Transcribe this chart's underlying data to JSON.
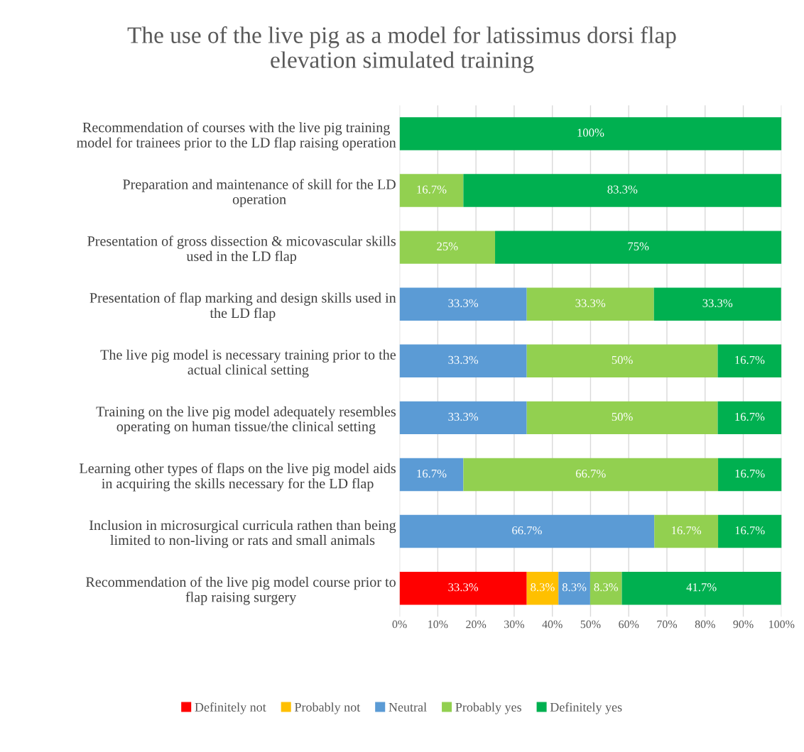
{
  "chart_data": {
    "type": "bar",
    "orientation": "horizontal",
    "stacked": true,
    "title": "The use of the live pig as a model for latissimus dorsi flap\nelevation simulated training",
    "categories": [
      "Recommendation of courses with the live pig training\nmodel for trainees prior to the LD flap raising operation",
      "Preparation and maintenance of skill for the LD\noperation",
      "Presentation of gross dissection & micovascular skills\nused in the LD flap",
      "Presentation of flap marking and design skills used in\nthe LD flap",
      "The live pig model is necessary training prior to the\nactual clinical setting",
      "Training on the live pig model adequately resembles\noperating on human tissue/the clinical setting",
      "Learning other types of flaps on the live pig model aids\nin acquiring the skills necessary for the LD flap",
      "Inclusion in microsurgical curricula rathen than being\nlimited to non-living or rats and small animals",
      "Recommendation of the live pig model course prior to\nflap raising surgery"
    ],
    "series": [
      {
        "name": "Definitely not",
        "color": "#ff0000",
        "values": [
          null,
          null,
          null,
          null,
          null,
          null,
          null,
          null,
          33.3
        ],
        "value_labels": [
          null,
          null,
          null,
          null,
          null,
          null,
          null,
          null,
          "33.3%"
        ]
      },
      {
        "name": "Probably not",
        "color": "#ffc000",
        "values": [
          null,
          null,
          null,
          null,
          null,
          null,
          null,
          null,
          8.3
        ],
        "value_labels": [
          null,
          null,
          null,
          null,
          null,
          null,
          null,
          null,
          "8.3%"
        ]
      },
      {
        "name": "Neutral",
        "color": "#5b9bd5",
        "values": [
          null,
          null,
          null,
          33.3,
          33.3,
          33.3,
          16.7,
          66.7,
          8.3
        ],
        "value_labels": [
          null,
          null,
          null,
          "33.3%",
          "33.3%",
          "33.3%",
          "16.7%",
          "66.7%",
          "8.3%"
        ]
      },
      {
        "name": "Probably yes",
        "color": "#92d050",
        "values": [
          null,
          16.7,
          25,
          33.3,
          50,
          50,
          66.7,
          16.7,
          8.3
        ],
        "value_labels": [
          null,
          "16.7%",
          "25%",
          "33.3%",
          "50%",
          "50%",
          "66.7%",
          "16.7%",
          "8.3%"
        ]
      },
      {
        "name": "Definitely yes",
        "color": "#00b050",
        "values": [
          100,
          83.3,
          75,
          33.3,
          16.7,
          16.7,
          16.7,
          16.7,
          41.7
        ],
        "value_labels": [
          "100%",
          "83.3%",
          "75%",
          "33.3%",
          "16.7%",
          "16.7%",
          "16.7%",
          "16.7%",
          "41.7%"
        ]
      }
    ],
    "xlim": [
      0,
      100
    ],
    "xticks": [
      {
        "value": 0,
        "label": "0%"
      },
      {
        "value": 10,
        "label": "10%"
      },
      {
        "value": 20,
        "label": "20%"
      },
      {
        "value": 30,
        "label": "30%"
      },
      {
        "value": 40,
        "label": "40%"
      },
      {
        "value": 50,
        "label": "50%"
      },
      {
        "value": 60,
        "label": "60%"
      },
      {
        "value": 70,
        "label": "70%"
      },
      {
        "value": 80,
        "label": "80%"
      },
      {
        "value": 90,
        "label": "90%"
      },
      {
        "value": 100,
        "label": "100%"
      }
    ],
    "grid": "x",
    "legend": "bottom"
  }
}
